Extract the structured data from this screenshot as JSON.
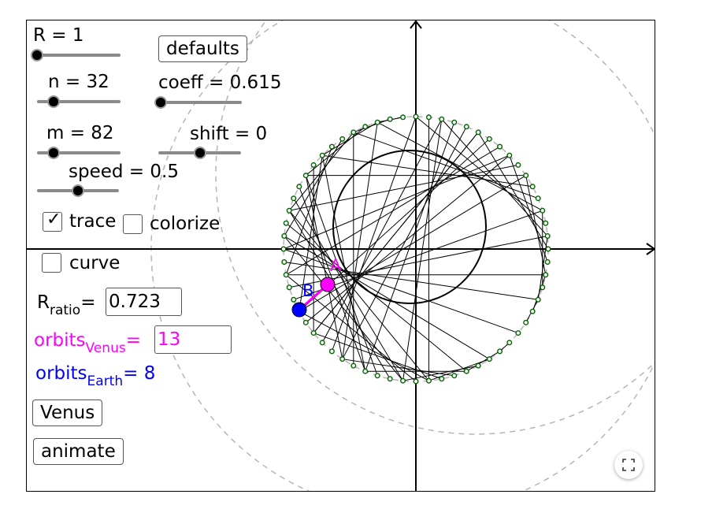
{
  "controls": {
    "R_label": "R = 1",
    "n_label": "n = 32",
    "m_label": "m = 82",
    "coeff_label": "coeff = 0.615",
    "shift_label": "shift = 0",
    "speed_label": "speed = 0.5",
    "defaults_label": "defaults",
    "trace_label": "trace",
    "colorize_label": "colorize",
    "curve_label": "curve",
    "venus_button": "Venus",
    "animate_button": "animate"
  },
  "sliders": {
    "R": 0.0,
    "n": 0.2,
    "m": 0.2,
    "coeff": 0.0,
    "shift": 0.5,
    "speed": 0.5
  },
  "checkboxes": {
    "trace": true,
    "colorize": false,
    "curve": false
  },
  "ratio": {
    "base": "R",
    "sub": "ratio",
    "eq": "=",
    "value": "0.723"
  },
  "orbits_venus": {
    "base": "orbits",
    "sub": "Venus",
    "eq": "=",
    "value": "13"
  },
  "orbits_earth": {
    "base": "orbits",
    "sub": "Earth",
    "eq": "= 8"
  },
  "points": {
    "A": "A",
    "B": "B"
  },
  "colors": {
    "venus": "#ff00ff",
    "earth": "#0000ff",
    "points": "#006400",
    "circle": "#b5b5b5"
  },
  "icons": {
    "fullscreen": "fullscreen-icon"
  }
}
